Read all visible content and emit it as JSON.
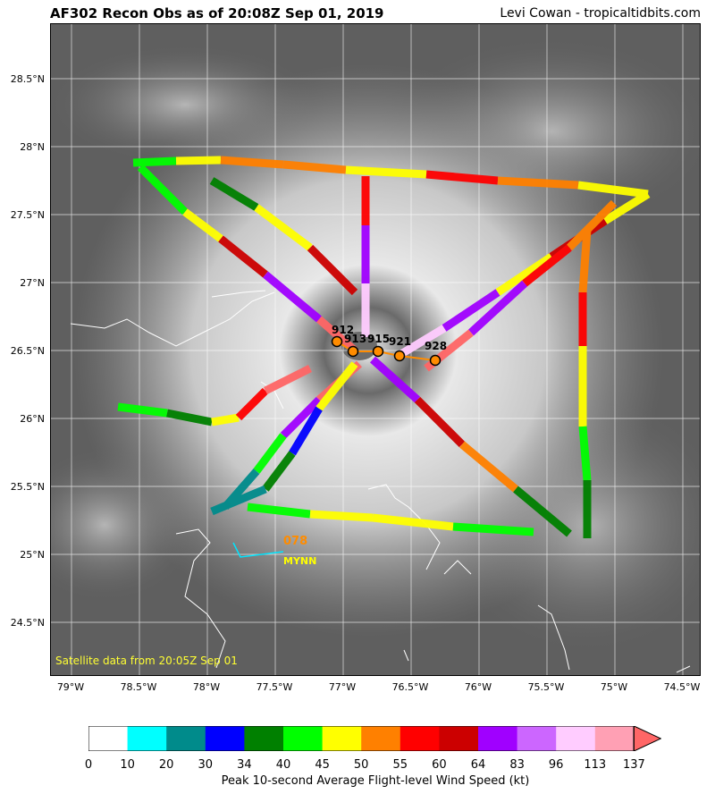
{
  "header": {
    "title": "AF302 Recon Obs as of 20:08Z Sep 01, 2019",
    "credit": "Levi Cowan - tropicaltidbits.com"
  },
  "satellite_note": "Satellite data from 20:05Z Sep 01",
  "axes": {
    "lat_labels": [
      "28.5°N",
      "28°N",
      "27.5°N",
      "27°N",
      "26.5°N",
      "26°N",
      "25.5°N",
      "25°N",
      "24.5°N"
    ],
    "lon_labels": [
      "79°W",
      "78.5°W",
      "78°W",
      "77.5°W",
      "77°W",
      "76.5°W",
      "76°W",
      "75.5°W",
      "75°W",
      "74.5°W"
    ]
  },
  "pressure_labels": [
    "912",
    "913",
    "915",
    "921",
    "928"
  ],
  "station": {
    "code": "MYNN",
    "value": "078"
  },
  "colorbar": {
    "ticks": [
      "0",
      "10",
      "20",
      "30",
      "34",
      "40",
      "45",
      "50",
      "55",
      "60",
      "64",
      "83",
      "96",
      "113",
      "137"
    ],
    "colors": [
      "#ffffff",
      "#00ffff",
      "#008b8b",
      "#0000ff",
      "#008000",
      "#00ff00",
      "#ffff00",
      "#ff8000",
      "#ff0000",
      "#cc0000",
      "#a000ff",
      "#cc66ff",
      "#ffccff",
      "#ffa0b4",
      "#ff6666"
    ],
    "label": "Peak 10-second Average Flight-level Wind Speed (kt)"
  },
  "colors": {
    "track_line": "#ff8c00",
    "station_value": "#ff8c00",
    "station_code": "#ffff00",
    "sat_note": "#ffff33"
  }
}
